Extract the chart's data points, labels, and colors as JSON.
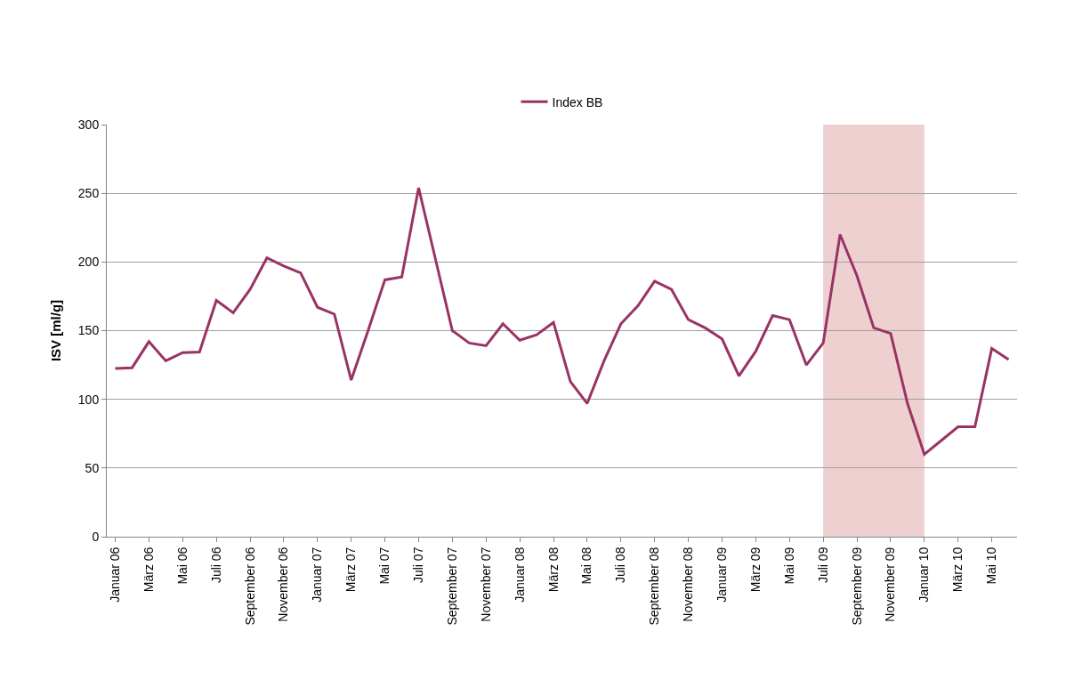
{
  "chart_data": {
    "type": "line",
    "ylabel": "ISV [ml/g]",
    "categories": [
      "Januar 06",
      null,
      "März 06",
      null,
      "Mai 06",
      null,
      "Juli 06",
      null,
      "September 06",
      null,
      "November 06",
      null,
      "Januar 07",
      null,
      "März 07",
      null,
      "Mai 07",
      null,
      "Juli 07",
      null,
      "September 07",
      null,
      "November 07",
      null,
      "Januar 08",
      null,
      "März 08",
      null,
      "Mai 08",
      null,
      "Juli 08",
      null,
      "September 08",
      null,
      "November 08",
      null,
      "Januar 09",
      null,
      "März 09",
      null,
      "Mai 09",
      null,
      "Juli 09",
      null,
      "September 09",
      null,
      "November 09",
      null,
      "Januar 10",
      null,
      "März 10",
      null,
      "Mai 10",
      null
    ],
    "series": [
      {
        "name": "Index BB",
        "color": "#993366",
        "values": [
          122.5,
          123,
          142,
          128,
          134,
          134.5,
          172,
          163,
          180,
          203,
          197,
          192,
          167,
          162,
          114,
          150,
          187,
          189,
          254,
          202,
          150,
          141,
          139,
          155,
          143,
          147,
          156,
          113,
          97,
          128,
          155,
          168,
          186,
          180,
          158,
          152,
          144,
          117,
          135,
          161,
          158,
          125,
          141,
          220,
          190,
          152,
          148,
          97,
          60,
          70,
          80,
          80,
          137,
          129
        ]
      }
    ],
    "bands": [
      {
        "axis": "x",
        "from": "Juli 09",
        "to": "Januar 10",
        "color": "#edd0cf"
      }
    ],
    "ylim": [
      0,
      300
    ],
    "yticks": [
      0,
      50,
      100,
      150,
      200,
      250,
      300
    ],
    "grid": "y",
    "legend": "top",
    "marker": "none",
    "line_style": "solid"
  }
}
